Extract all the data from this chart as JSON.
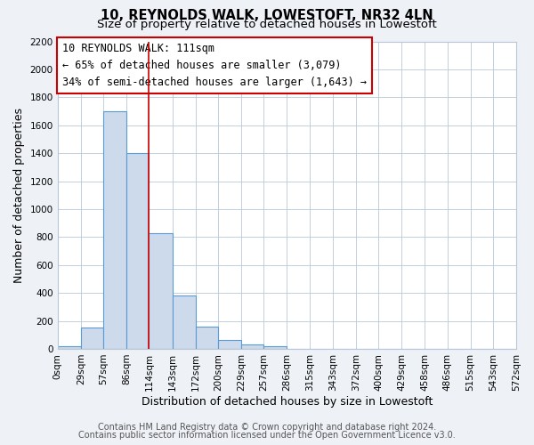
{
  "title": "10, REYNOLDS WALK, LOWESTOFT, NR32 4LN",
  "subtitle": "Size of property relative to detached houses in Lowestoft",
  "xlabel": "Distribution of detached houses by size in Lowestoft",
  "ylabel": "Number of detached properties",
  "bar_edges": [
    0,
    29,
    57,
    86,
    114,
    143,
    172,
    200,
    229,
    257,
    286,
    315,
    343,
    372,
    400,
    429,
    458,
    486,
    515,
    543,
    572
  ],
  "bar_heights": [
    20,
    155,
    1700,
    1400,
    830,
    380,
    160,
    65,
    30,
    20,
    0,
    0,
    0,
    0,
    0,
    0,
    0,
    0,
    0,
    0
  ],
  "bar_color": "#ccdaeb",
  "bar_edge_color": "#5b9bd5",
  "vline_x": 114,
  "vline_color": "#cc0000",
  "annotation_line1": "10 REYNOLDS WALK: 111sqm",
  "annotation_line2": "← 65% of detached houses are smaller (3,079)",
  "annotation_line3": "34% of semi-detached houses are larger (1,643) →",
  "ylim": [
    0,
    2200
  ],
  "yticks": [
    0,
    200,
    400,
    600,
    800,
    1000,
    1200,
    1400,
    1600,
    1800,
    2000,
    2200
  ],
  "xtick_labels": [
    "0sqm",
    "29sqm",
    "57sqm",
    "86sqm",
    "114sqm",
    "143sqm",
    "172sqm",
    "200sqm",
    "229sqm",
    "257sqm",
    "286sqm",
    "315sqm",
    "343sqm",
    "372sqm",
    "400sqm",
    "429sqm",
    "458sqm",
    "486sqm",
    "515sqm",
    "543sqm",
    "572sqm"
  ],
  "footer_line1": "Contains HM Land Registry data © Crown copyright and database right 2024.",
  "footer_line2": "Contains public sector information licensed under the Open Government Licence v3.0.",
  "bg_color": "#eef2f7",
  "plot_bg_color": "#ffffff",
  "grid_color": "#b8c8d8",
  "title_fontsize": 10.5,
  "subtitle_fontsize": 9.5,
  "axis_label_fontsize": 9,
  "tick_fontsize": 7.5,
  "footer_fontsize": 7,
  "annotation_fontsize": 8.5
}
